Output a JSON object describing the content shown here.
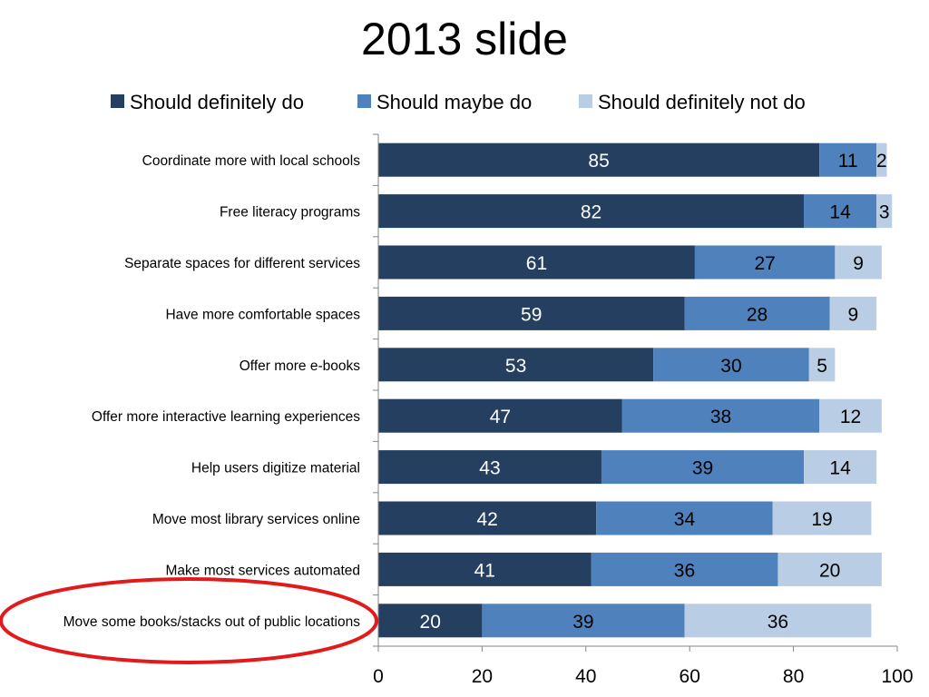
{
  "slide": {
    "title": "2013 slide"
  },
  "chart_data": {
    "type": "bar",
    "orientation": "horizontal",
    "stacked": true,
    "categories": [
      "Coordinate more with local schools",
      "Free literacy programs",
      "Separate spaces for different services",
      "Have more comfortable spaces",
      "Offer more e-books",
      "Offer more interactive learning experiences",
      "Help users digitize material",
      "Move most library services online",
      "Make most services automated",
      "Move some books/stacks out of public locations"
    ],
    "series": [
      {
        "name": "Should definitely do",
        "color": "#243f60",
        "values": [
          85,
          82,
          61,
          59,
          53,
          47,
          43,
          42,
          41,
          20
        ]
      },
      {
        "name": "Should maybe do",
        "color": "#4f81bd",
        "values": [
          11,
          14,
          27,
          28,
          30,
          38,
          39,
          34,
          36,
          39
        ]
      },
      {
        "name": "Should definitely not do",
        "color": "#b9cde5",
        "values": [
          2,
          3,
          9,
          9,
          5,
          12,
          14,
          19,
          20,
          36
        ]
      }
    ],
    "xlim": [
      0,
      100
    ],
    "xticks": [
      0,
      20,
      40,
      60,
      80,
      100
    ],
    "legend_position": "top",
    "grid": false,
    "annotation": {
      "shape": "ellipse",
      "color": "#e31a1c",
      "highlights": "Move some books/stacks out of public locations"
    }
  }
}
